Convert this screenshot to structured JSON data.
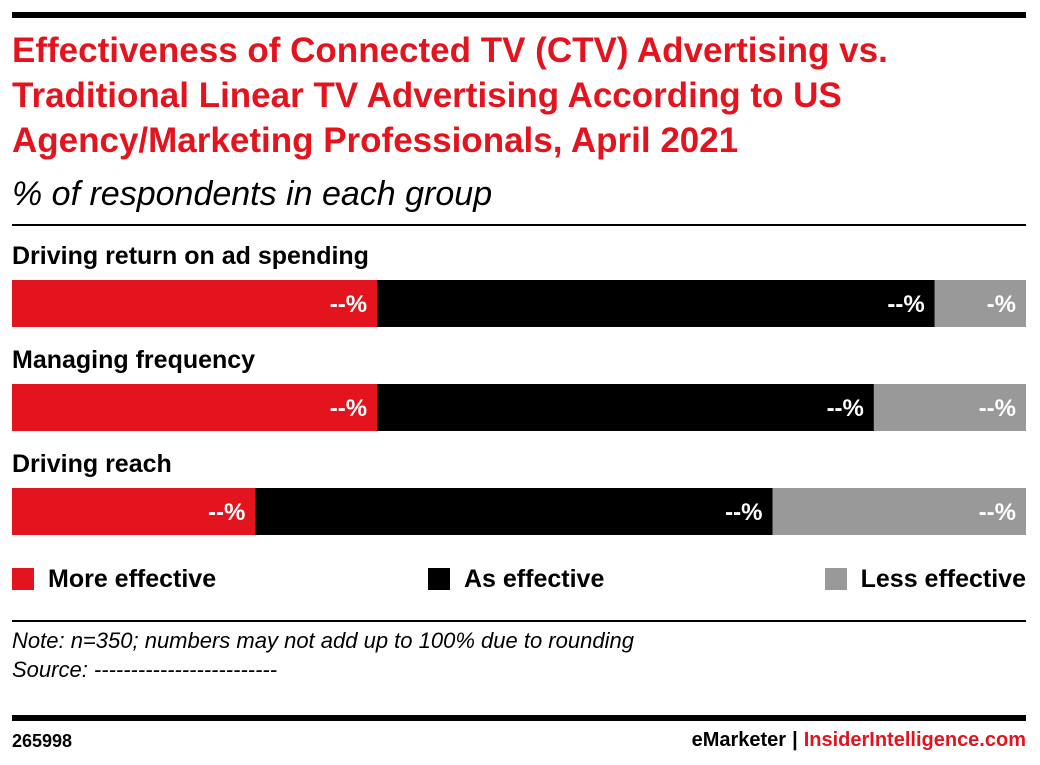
{
  "title": "Effectiveness of Connected TV (CTV) Advertising vs. Traditional Linear TV Advertising According to US Agency/Marketing Professionals, April 2021",
  "subtitle": "% of respondents in each group",
  "colors": {
    "more": "#e4141f",
    "as": "#000000",
    "less": "#999999"
  },
  "chart_data": {
    "type": "bar",
    "orientation": "horizontal-stacked",
    "categories": [
      "Driving return on ad spending",
      "Managing frequency",
      "Driving reach"
    ],
    "series": [
      {
        "name": "More effective",
        "values": [
          36,
          36,
          24
        ],
        "labels": [
          "--%",
          "--%",
          "--%"
        ]
      },
      {
        "name": "As effective",
        "values": [
          55,
          49,
          51
        ],
        "labels": [
          "--%",
          "--%",
          "--%"
        ]
      },
      {
        "name": "Less effective",
        "values": [
          9,
          15,
          25
        ],
        "labels": [
          "-%",
          "--%",
          "--%"
        ]
      }
    ],
    "xlim": [
      0,
      100
    ],
    "grid": false,
    "legend": "bottom"
  },
  "note": "Note: n=350; numbers may not add up to 100% due to rounding",
  "source": "Source: -------------------------",
  "chart_id": "265998",
  "brand": {
    "emarketer": "eMarketer",
    "separator": "|",
    "insider": "InsiderIntelligence.com"
  }
}
